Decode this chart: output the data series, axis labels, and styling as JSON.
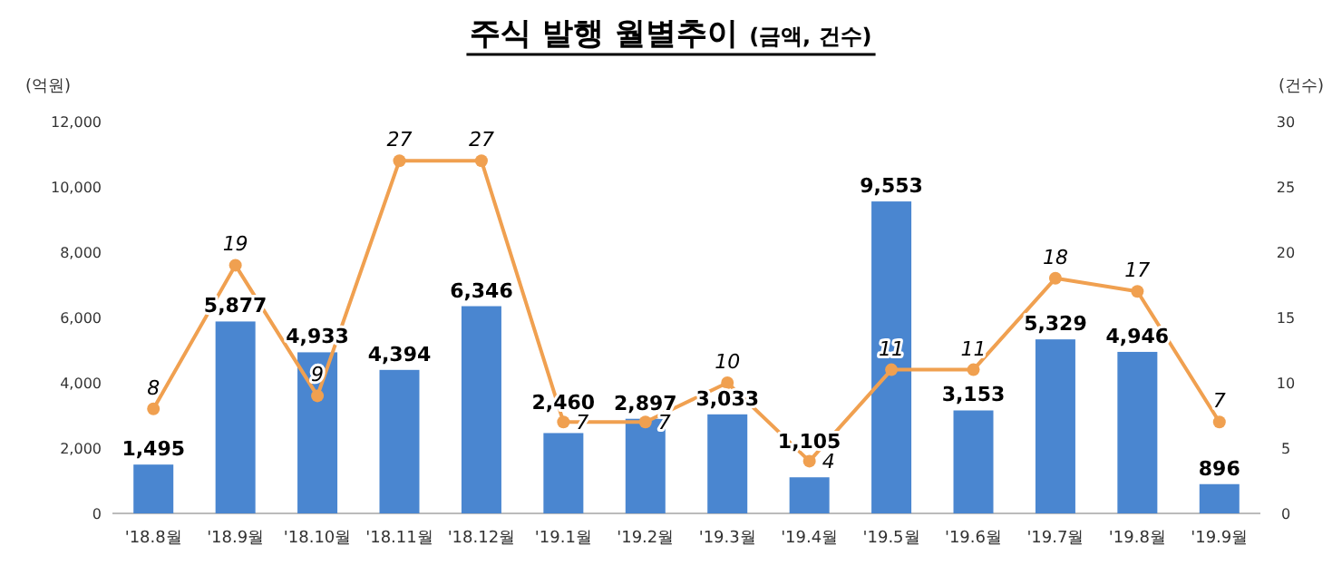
{
  "chart_data": {
    "type": "bar",
    "title": "주식 발행 월별추이",
    "subtitle": "(금액, 건수)",
    "ylabel": "(억원)",
    "y2label": "(건수)",
    "categories": [
      "'18.8월",
      "'18.9월",
      "'18.10월",
      "'18.11월",
      "'18.12월",
      "'19.1월",
      "'19.2월",
      "'19.3월",
      "'19.4월",
      "'19.5월",
      "'19.6월",
      "'19.7월",
      "'19.8월",
      "'19.9월"
    ],
    "series": [
      {
        "color": "#4a86d0",
        "values": [
          1495,
          5877,
          4933,
          4394,
          6346,
          2460,
          2897,
          3033,
          1105,
          9553,
          3153,
          5329,
          4946,
          896
        ],
        "value_labels": [
          "1,495",
          "5,877",
          "4,933",
          "4,394",
          "6,346",
          "2,460",
          "2,897",
          "3,033",
          "1,105",
          "9,553",
          "3,153",
          "5,329",
          "4,946",
          "896"
        ]
      },
      {
        "type": "line",
        "axis": "y2",
        "color": "#f0a050",
        "marker": "circle",
        "values": [
          8,
          19,
          9,
          27,
          27,
          7,
          7,
          10,
          4,
          11,
          11,
          18,
          17,
          7
        ],
        "value_labels": [
          "8",
          "19",
          "9",
          "27",
          "27",
          "7",
          "7",
          "10",
          "4",
          "11",
          "11",
          "18",
          "17",
          "7"
        ]
      }
    ],
    "ylim": [
      0,
      12000
    ],
    "yticks": [
      {
        "value": 0,
        "label": "0"
      },
      {
        "value": 2000,
        "label": "2,000"
      },
      {
        "value": 4000,
        "label": "4,000"
      },
      {
        "value": 6000,
        "label": "6,000"
      },
      {
        "value": 8000,
        "label": "8,000"
      },
      {
        "value": 10000,
        "label": "10,000"
      },
      {
        "value": 12000,
        "label": "12,000"
      }
    ],
    "y2lim": [
      0,
      30
    ],
    "y2ticks": [
      0,
      5,
      10,
      15,
      20,
      25,
      30
    ],
    "grid": false,
    "legend": false
  }
}
